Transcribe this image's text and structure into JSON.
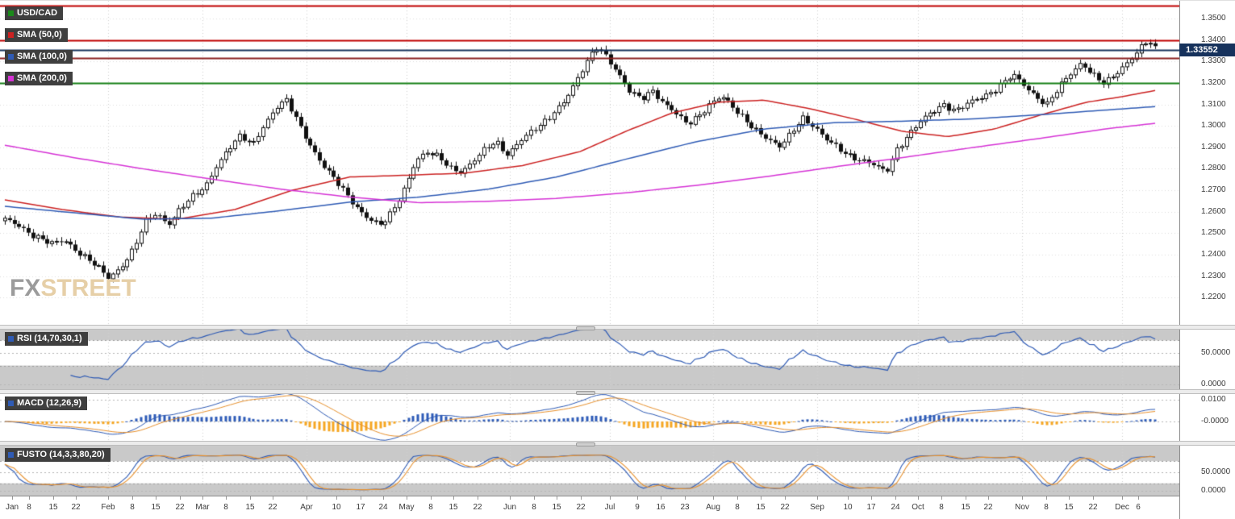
{
  "app": {
    "watermark_fx": "FX",
    "watermark_street": "STREET"
  },
  "legend": {
    "symbol": {
      "label": "USD/CAD",
      "color": "#1a8a1a"
    },
    "sma50": {
      "label": "SMA (50,0)",
      "color": "#cc2222"
    },
    "sma100": {
      "label": "SMA (100,0)",
      "color": "#2f5bb5"
    },
    "sma200": {
      "label": "SMA (200,0)",
      "color": "#d633d6"
    }
  },
  "price_axis": {
    "ticks": [
      {
        "label": "1.3500",
        "value": 1.35
      },
      {
        "label": "1.3400",
        "value": 1.34
      },
      {
        "label": "1.3300",
        "value": 1.33
      },
      {
        "label": "1.3200",
        "value": 1.32
      },
      {
        "label": "1.3100",
        "value": 1.31
      },
      {
        "label": "1.3000",
        "value": 1.3
      },
      {
        "label": "1.2900",
        "value": 1.29
      },
      {
        "label": "1.2800",
        "value": 1.28
      },
      {
        "label": "1.2700",
        "value": 1.27
      },
      {
        "label": "1.2600",
        "value": 1.26
      },
      {
        "label": "1.2500",
        "value": 1.25
      },
      {
        "label": "1.2400",
        "value": 1.24
      },
      {
        "label": "1.2300",
        "value": 1.23
      },
      {
        "label": "1.2200",
        "value": 1.22
      }
    ],
    "badge": {
      "label": "1.33552",
      "value": 1.33552,
      "bg": "#16325c"
    }
  },
  "time_axis": {
    "labels": [
      {
        "t": 0.006,
        "text": "Jan"
      },
      {
        "t": 0.021,
        "text": "8"
      },
      {
        "t": 0.042,
        "text": "15"
      },
      {
        "t": 0.062,
        "text": "22"
      },
      {
        "t": 0.09,
        "text": "Feb"
      },
      {
        "t": 0.111,
        "text": "8"
      },
      {
        "t": 0.131,
        "text": "15"
      },
      {
        "t": 0.152,
        "text": "22"
      },
      {
        "t": 0.172,
        "text": "Mar"
      },
      {
        "t": 0.192,
        "text": "8"
      },
      {
        "t": 0.213,
        "text": "15"
      },
      {
        "t": 0.233,
        "text": "22"
      },
      {
        "t": 0.262,
        "text": "Apr"
      },
      {
        "t": 0.288,
        "text": "10"
      },
      {
        "t": 0.309,
        "text": "17"
      },
      {
        "t": 0.329,
        "text": "24"
      },
      {
        "t": 0.349,
        "text": "May"
      },
      {
        "t": 0.37,
        "text": "8"
      },
      {
        "t": 0.39,
        "text": "15"
      },
      {
        "t": 0.411,
        "text": "22"
      },
      {
        "t": 0.439,
        "text": "Jun"
      },
      {
        "t": 0.46,
        "text": "8"
      },
      {
        "t": 0.48,
        "text": "15"
      },
      {
        "t": 0.501,
        "text": "22"
      },
      {
        "t": 0.526,
        "text": "Jul"
      },
      {
        "t": 0.55,
        "text": "9"
      },
      {
        "t": 0.57,
        "text": "16"
      },
      {
        "t": 0.591,
        "text": "23"
      },
      {
        "t": 0.616,
        "text": "Aug"
      },
      {
        "t": 0.637,
        "text": "8"
      },
      {
        "t": 0.657,
        "text": "15"
      },
      {
        "t": 0.678,
        "text": "22"
      },
      {
        "t": 0.706,
        "text": "Sep"
      },
      {
        "t": 0.733,
        "text": "10"
      },
      {
        "t": 0.753,
        "text": "17"
      },
      {
        "t": 0.774,
        "text": "24"
      },
      {
        "t": 0.794,
        "text": "Oct"
      },
      {
        "t": 0.814,
        "text": "8"
      },
      {
        "t": 0.835,
        "text": "15"
      },
      {
        "t": 0.855,
        "text": "22"
      },
      {
        "t": 0.884,
        "text": "Nov"
      },
      {
        "t": 0.905,
        "text": "8"
      },
      {
        "t": 0.925,
        "text": "15"
      },
      {
        "t": 0.946,
        "text": "22"
      },
      {
        "t": 0.971,
        "text": "Dec"
      },
      {
        "t": 0.985,
        "text": "6"
      }
    ],
    "month_ts": [
      0.09,
      0.172,
      0.262,
      0.349,
      0.439,
      0.526,
      0.616,
      0.706,
      0.794,
      0.884,
      0.971
    ]
  },
  "chart_data": {
    "type": "candlestick",
    "symbol": "USD/CAD",
    "timeframe": "daily, Jan - Dec 6",
    "ylim": [
      1.2073,
      1.3583
    ],
    "candle_count": 246,
    "last_price": 1.33552,
    "price_keypoints": [
      [
        0.0,
        1.256
      ],
      [
        0.012,
        1.254
      ],
      [
        0.025,
        1.249
      ],
      [
        0.04,
        1.2445
      ],
      [
        0.052,
        1.247
      ],
      [
        0.065,
        1.241
      ],
      [
        0.078,
        1.235
      ],
      [
        0.09,
        1.229
      ],
      [
        0.1,
        1.234
      ],
      [
        0.112,
        1.243
      ],
      [
        0.122,
        1.255
      ],
      [
        0.132,
        1.259
      ],
      [
        0.142,
        1.2545
      ],
      [
        0.152,
        1.2615
      ],
      [
        0.163,
        1.2665
      ],
      [
        0.174,
        1.271
      ],
      [
        0.184,
        1.282
      ],
      [
        0.195,
        1.29
      ],
      [
        0.205,
        1.295
      ],
      [
        0.215,
        1.2905
      ],
      [
        0.226,
        1.3015
      ],
      [
        0.237,
        1.3095
      ],
      [
        0.245,
        1.3115
      ],
      [
        0.255,
        1.301
      ],
      [
        0.265,
        1.2915
      ],
      [
        0.276,
        1.2825
      ],
      [
        0.287,
        1.2745
      ],
      [
        0.297,
        1.2675
      ],
      [
        0.307,
        1.2615
      ],
      [
        0.317,
        1.257
      ],
      [
        0.327,
        1.2535
      ],
      [
        0.337,
        1.2595
      ],
      [
        0.347,
        1.2705
      ],
      [
        0.357,
        1.2845
      ],
      [
        0.367,
        1.2875
      ],
      [
        0.377,
        1.285
      ],
      [
        0.387,
        1.2805
      ],
      [
        0.397,
        1.279
      ],
      [
        0.407,
        1.2835
      ],
      [
        0.417,
        1.2885
      ],
      [
        0.427,
        1.2925
      ],
      [
        0.437,
        1.287
      ],
      [
        0.447,
        1.293
      ],
      [
        0.457,
        1.2965
      ],
      [
        0.467,
        1.3005
      ],
      [
        0.477,
        1.3065
      ],
      [
        0.487,
        1.3125
      ],
      [
        0.497,
        1.3205
      ],
      [
        0.507,
        1.3305
      ],
      [
        0.515,
        1.3375
      ],
      [
        0.523,
        1.333
      ],
      [
        0.533,
        1.3245
      ],
      [
        0.543,
        1.3155
      ],
      [
        0.553,
        1.3125
      ],
      [
        0.563,
        1.317
      ],
      [
        0.573,
        1.3105
      ],
      [
        0.583,
        1.3055
      ],
      [
        0.593,
        1.3005
      ],
      [
        0.603,
        1.305
      ],
      [
        0.613,
        1.3105
      ],
      [
        0.623,
        1.3135
      ],
      [
        0.633,
        1.308
      ],
      [
        0.643,
        1.3035
      ],
      [
        0.653,
        1.2985
      ],
      [
        0.663,
        1.2935
      ],
      [
        0.673,
        1.2895
      ],
      [
        0.683,
        1.2965
      ],
      [
        0.693,
        1.3045
      ],
      [
        0.703,
        1.2995
      ],
      [
        0.713,
        1.2935
      ],
      [
        0.723,
        1.2905
      ],
      [
        0.733,
        1.287
      ],
      [
        0.743,
        1.284
      ],
      [
        0.755,
        1.2815
      ],
      [
        0.766,
        1.2785
      ],
      [
        0.776,
        1.29
      ],
      [
        0.786,
        1.296
      ],
      [
        0.796,
        1.3015
      ],
      [
        0.806,
        1.3065
      ],
      [
        0.816,
        1.3105
      ],
      [
        0.826,
        1.307
      ],
      [
        0.836,
        1.3095
      ],
      [
        0.846,
        1.3125
      ],
      [
        0.856,
        1.3155
      ],
      [
        0.866,
        1.3195
      ],
      [
        0.876,
        1.3235
      ],
      [
        0.886,
        1.3185
      ],
      [
        0.896,
        1.314
      ],
      [
        0.906,
        1.3105
      ],
      [
        0.916,
        1.3175
      ],
      [
        0.926,
        1.3235
      ],
      [
        0.936,
        1.3295
      ],
      [
        0.946,
        1.3245
      ],
      [
        0.956,
        1.3195
      ],
      [
        0.966,
        1.3235
      ],
      [
        0.976,
        1.3295
      ],
      [
        0.986,
        1.3365
      ],
      [
        0.994,
        1.3405
      ],
      [
        1.0,
        1.3355
      ]
    ],
    "overlays": [
      {
        "name": "SMA (50,0)",
        "color": "#cc2222",
        "points": [
          [
            0,
            1.2655
          ],
          [
            0.05,
            1.261
          ],
          [
            0.1,
            1.2575
          ],
          [
            0.15,
            1.2565
          ],
          [
            0.2,
            1.261
          ],
          [
            0.25,
            1.27
          ],
          [
            0.3,
            1.2762
          ],
          [
            0.35,
            1.277
          ],
          [
            0.4,
            1.278
          ],
          [
            0.45,
            1.2815
          ],
          [
            0.5,
            1.288
          ],
          [
            0.54,
            1.2975
          ],
          [
            0.58,
            1.306
          ],
          [
            0.62,
            1.311
          ],
          [
            0.66,
            1.312
          ],
          [
            0.7,
            1.308
          ],
          [
            0.74,
            1.303
          ],
          [
            0.78,
            1.2975
          ],
          [
            0.82,
            1.295
          ],
          [
            0.86,
            1.2985
          ],
          [
            0.9,
            1.305
          ],
          [
            0.94,
            1.311
          ],
          [
            0.97,
            1.3135
          ],
          [
            1.0,
            1.3165
          ]
        ]
      },
      {
        "name": "SMA (100,0)",
        "color": "#2f5bb5",
        "points": [
          [
            0,
            1.2625
          ],
          [
            0.06,
            1.2595
          ],
          [
            0.12,
            1.2565
          ],
          [
            0.18,
            1.257
          ],
          [
            0.24,
            1.2605
          ],
          [
            0.3,
            1.2645
          ],
          [
            0.36,
            1.2668
          ],
          [
            0.42,
            1.2705
          ],
          [
            0.48,
            1.2762
          ],
          [
            0.54,
            1.2845
          ],
          [
            0.6,
            1.2925
          ],
          [
            0.66,
            1.2985
          ],
          [
            0.72,
            1.3015
          ],
          [
            0.78,
            1.3022
          ],
          [
            0.84,
            1.3032
          ],
          [
            0.9,
            1.3052
          ],
          [
            0.96,
            1.3075
          ],
          [
            1.0,
            1.309
          ]
        ]
      },
      {
        "name": "SMA (200,0)",
        "color": "#d633d6",
        "points": [
          [
            0,
            1.291
          ],
          [
            0.06,
            1.2852
          ],
          [
            0.12,
            1.28
          ],
          [
            0.18,
            1.2752
          ],
          [
            0.24,
            1.2705
          ],
          [
            0.3,
            1.2668
          ],
          [
            0.36,
            1.2642
          ],
          [
            0.42,
            1.2648
          ],
          [
            0.48,
            1.2662
          ],
          [
            0.54,
            1.2688
          ],
          [
            0.6,
            1.2722
          ],
          [
            0.66,
            1.2762
          ],
          [
            0.72,
            1.2808
          ],
          [
            0.78,
            1.2852
          ],
          [
            0.84,
            1.2898
          ],
          [
            0.9,
            1.2942
          ],
          [
            0.96,
            1.2988
          ],
          [
            1.0,
            1.3012
          ]
        ]
      }
    ],
    "h_lines": [
      {
        "price": 1.356,
        "color": "#c00000",
        "width": 2
      },
      {
        "price": 1.34,
        "color": "#c00000",
        "width": 2
      },
      {
        "price": 1.3355,
        "color": "#16325c",
        "width": 2
      },
      {
        "price": 1.3315,
        "color": "#8b2020",
        "width": 2
      },
      {
        "price": 1.32,
        "color": "#158015",
        "width": 2
      }
    ],
    "indicators": [
      {
        "id": "rsi",
        "label": "RSI (14,70,30,1)",
        "type": "rsi",
        "period": 14,
        "overbought": 70,
        "oversold": 30,
        "color": "#2f5bb5",
        "scale": {
          "levels": [
            {
              "label": "50.0000",
              "value": 50
            },
            {
              "label": "0.0000",
              "value": 0
            }
          ]
        }
      },
      {
        "id": "macd",
        "label": "MACD (12,26,9)",
        "type": "macd",
        "fast": 12,
        "slow": 26,
        "signal": 9,
        "color": "#2f5bb5",
        "colors": {
          "macd": "#2f5bb5",
          "signal": "#e8912d",
          "hist_pos": "#2e5cb8",
          "hist_neg": "#f5a623"
        },
        "scale": {
          "levels": [
            {
              "label": "0.0100",
              "value": 0.01
            },
            {
              "label": "-0.0000",
              "value": 0
            }
          ]
        }
      },
      {
        "id": "stoch",
        "label": "FUSTO (14,3,3,80,20)",
        "type": "stochastic",
        "k": 14,
        "k_smooth": 3,
        "d": 3,
        "overbought": 80,
        "oversold": 20,
        "color": "#2f5bb5",
        "colors": {
          "k": "#2f5bb5",
          "d": "#e8912d"
        },
        "scale": {
          "levels": [
            {
              "label": "50.0000",
              "value": 50
            },
            {
              "label": "0.0000",
              "value": 0
            }
          ]
        }
      }
    ]
  }
}
